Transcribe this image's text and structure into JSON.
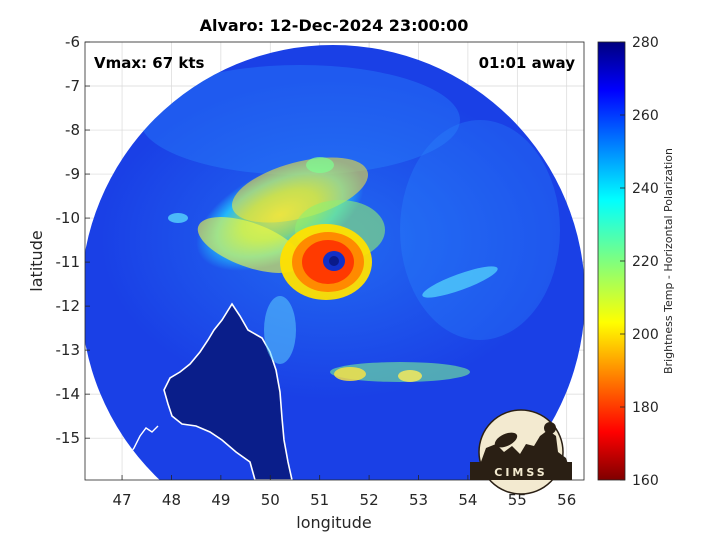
{
  "chart_data": {
    "type": "heatmap",
    "title": "Alvaro: 12-Dec-2024 23:00:00",
    "xlabel": "longitude",
    "ylabel": "latitude",
    "xlim": [
      46.25,
      56.35
    ],
    "ylim": [
      -15.95,
      -6
    ],
    "x_ticks": [
      47,
      48,
      49,
      50,
      51,
      52,
      53,
      54,
      55,
      56
    ],
    "y_ticks": [
      -6,
      -7,
      -8,
      -9,
      -10,
      -11,
      -12,
      -13,
      -14,
      -15
    ],
    "colorbar": {
      "label": "Brightness Temp - Horizontal Polarization",
      "range": [
        160,
        280
      ],
      "ticks": [
        160,
        180,
        200,
        220,
        240,
        260,
        280
      ],
      "colormap": "jet"
    },
    "annotations": {
      "vmax": "Vmax: 67 kts",
      "time_offset": "01:01 away"
    },
    "storm_center": {
      "lon": 51.3,
      "lat": -11.2
    },
    "logo": "CIMSS"
  },
  "colors": {
    "background_field": "#1a3fe0",
    "outside_swath": "#ffffff",
    "land": "#0c1f8e",
    "coastline": "#ffffff",
    "eyewall": "#ff5a00"
  }
}
